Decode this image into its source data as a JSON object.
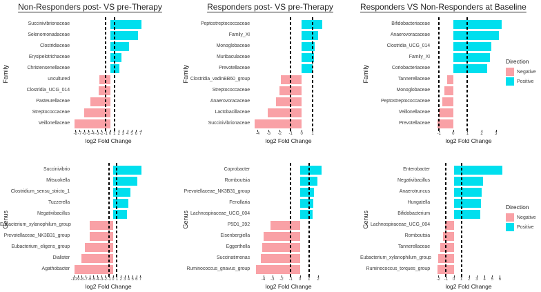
{
  "figure": {
    "background": "#ffffff",
    "colors": {
      "negative": "#F9A1A6",
      "positive": "#00DFEE"
    },
    "legend": {
      "title": "Direction",
      "items": [
        {
          "label": "Negative",
          "color": "negative"
        },
        {
          "label": "Positive",
          "color": "positive"
        }
      ]
    }
  },
  "chart_data": [
    {
      "type": "bar",
      "orientation": "horizontal",
      "title": "Non-Responders post- VS pre-Therapy",
      "ylabel": "Family",
      "xlabel": "log2 Fold Change",
      "xlim": [
        -8.5,
        7.7
      ],
      "xticks": [
        -8,
        -7,
        -6,
        -5,
        -4,
        -3,
        -2,
        -1,
        0,
        1,
        2,
        3,
        4,
        5,
        6,
        7
      ],
      "reference_lines": [
        -1,
        1
      ],
      "categories": [
        "Succinivibrionaceae",
        "Selenomonadaceae",
        "Clostridiaceae",
        "Erysipelotrichaceae",
        "Christensenellaceae",
        "uncultured",
        "Clostridia_UCG_014",
        "Pasteurellaceae",
        "Streptococcaceae",
        "Veillonellaceae"
      ],
      "values": [
        7.2,
        6.4,
        4.4,
        2.6,
        2.2,
        -2.4,
        -2.7,
        -4.5,
        -5.9,
        -8.2
      ],
      "direction": [
        "Positive",
        "Positive",
        "Positive",
        "Positive",
        "Positive",
        "Negative",
        "Negative",
        "Negative",
        "Negative",
        "Negative"
      ]
    },
    {
      "type": "bar",
      "orientation": "horizontal",
      "title": "Responders post- VS pre-Therapy",
      "ylabel": "Family",
      "xlabel": "log2 Fold Change",
      "xlim": [
        -4.4,
        2.0
      ],
      "xticks": [
        -4,
        -3,
        -2,
        -1,
        0,
        1
      ],
      "reference_lines": [
        -1,
        1
      ],
      "categories": [
        "Peptostreptococcaceae",
        "Family_XI",
        "Monoglobaceae",
        "Muribaculaceae",
        "Prevotellaceae",
        "Clostridia_vadinBB60_group",
        "Streptococcaceae",
        "Anaerovoracaceae",
        "Lactobacillaceae",
        "Succinivibrionaceae"
      ],
      "values": [
        1.85,
        1.5,
        1.2,
        1.1,
        1.0,
        -1.9,
        -2.0,
        -2.35,
        -3.1,
        -4.3
      ],
      "direction": [
        "Positive",
        "Positive",
        "Positive",
        "Positive",
        "Positive",
        "Negative",
        "Negative",
        "Negative",
        "Negative",
        "Negative"
      ]
    },
    {
      "type": "bar",
      "orientation": "horizontal",
      "title": "Responders VS Non-Responders at Baseline",
      "ylabel": "Family",
      "xlabel": "log2 Fold Change",
      "xlim": [
        -1.4,
        3.55
      ],
      "xticks": [
        -1,
        0,
        1,
        2,
        3
      ],
      "reference_lines": [
        -1,
        1
      ],
      "categories": [
        "Bifidobacteriaceae",
        "Anaerovoracaceae",
        "Clostridia_UCG_014",
        "Family_XI",
        "Coriobacteriaceae",
        "Tannerellaceae",
        "Monoglobaceae",
        "Peptostreptococcaceae",
        "Veillonellaceae",
        "Prevotellaceae"
      ],
      "values": [
        3.4,
        3.2,
        2.7,
        2.6,
        2.4,
        -0.45,
        -0.6,
        -0.75,
        -1.0,
        -1.1
      ],
      "direction": [
        "Positive",
        "Positive",
        "Positive",
        "Positive",
        "Positive",
        "Negative",
        "Negative",
        "Negative",
        "Negative",
        "Negative"
      ]
    },
    {
      "type": "bar",
      "orientation": "horizontal",
      "ylabel": "Genus",
      "xlabel": "log2 Fold Change",
      "xlim": [
        -10.2,
        7.8
      ],
      "xticks": [
        -10,
        -9,
        -8,
        -7,
        -6,
        -5,
        -4,
        -3,
        -2,
        -1,
        0,
        1,
        2,
        3,
        4,
        5,
        6,
        7
      ],
      "reference_lines": [
        -1,
        1
      ],
      "categories": [
        "Succinivibrio",
        "Mitsuokella",
        "Clostridium_sensu_stricto_1",
        "Tuzzerella",
        "Negativibacillus",
        "Eubacterium_xylanophilum_group",
        "Prevotellaceae_NK3B31_group",
        "Eubacterium_eligens_group",
        "Dialister",
        "Agathobacter"
      ],
      "values": [
        7.2,
        6.3,
        4.5,
        4.0,
        3.5,
        -5.9,
        -6.0,
        -7.2,
        -8.1,
        -9.8
      ],
      "direction": [
        "Positive",
        "Positive",
        "Positive",
        "Positive",
        "Positive",
        "Negative",
        "Negative",
        "Negative",
        "Negative",
        "Negative"
      ]
    },
    {
      "type": "bar",
      "orientation": "horizontal",
      "ylabel": "Genus",
      "xlabel": "log2 Fold Change",
      "xlim": [
        -5.1,
        2.6
      ],
      "xticks": [
        -4,
        -3,
        -2,
        -1,
        0,
        1,
        2
      ],
      "reference_lines": [
        -1,
        1
      ],
      "categories": [
        "Coprobacter",
        "Romboutsia",
        "Prevotellaceae_NK3B31_group",
        "Fenollaria",
        "Lachnospiraceae_UCG_004",
        "P5D1_392",
        "Eisenbergiella",
        "Eggerthella",
        "Succinatimonas",
        "Ruminococcus_gnavus_group"
      ],
      "values": [
        2.4,
        1.95,
        1.55,
        1.5,
        1.4,
        -3.2,
        -4.0,
        -4.15,
        -4.25,
        -4.8
      ],
      "direction": [
        "Positive",
        "Positive",
        "Positive",
        "Positive",
        "Positive",
        "Negative",
        "Negative",
        "Negative",
        "Negative",
        "Negative"
      ]
    },
    {
      "type": "bar",
      "orientation": "horizontal",
      "ylabel": "Genus",
      "xlabel": "log2 Fold Change",
      "xlim": [
        -2.65,
        6.5
      ],
      "xticks": [
        -2,
        -1,
        0,
        1,
        2,
        3,
        4,
        5,
        6
      ],
      "reference_lines": [
        -1,
        1
      ],
      "categories": [
        "Enterobacter",
        "Negativibacillus",
        "Anaerotruncus",
        "Hungatella",
        "Bifidobacterium",
        "Lachnospiraceae_UCG_004",
        "Romboutsia",
        "Tannerellaceae",
        "Eubacterium_xylanophilum_group",
        "Ruminococcus_torques_group"
      ],
      "values": [
        6.3,
        3.8,
        3.65,
        3.5,
        3.45,
        -1.1,
        -1.4,
        -1.75,
        -2.05,
        -2.15
      ],
      "direction": [
        "Positive",
        "Positive",
        "Positive",
        "Positive",
        "Positive",
        "Negative",
        "Negative",
        "Negative",
        "Negative",
        "Negative"
      ]
    }
  ]
}
